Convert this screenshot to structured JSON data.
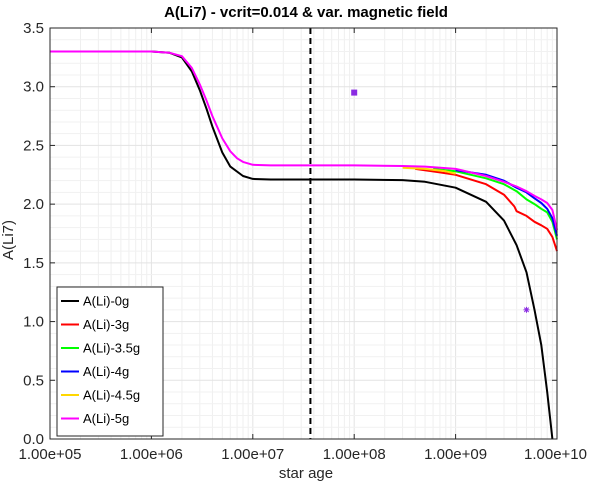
{
  "chart_data": {
    "type": "line",
    "title": "A(Li7) - vcrit=0.014 & var. magnetic field",
    "xlabel": "star age",
    "ylabel": "A(Li7)",
    "xscale": "log",
    "xlim": [
      100000,
      10000000000
    ],
    "ylim": [
      0,
      3.5
    ],
    "xticks": [
      100000,
      1000000,
      10000000,
      100000000,
      1000000000,
      10000000000
    ],
    "xtick_labels": [
      "1.00e+05",
      "1.00e+06",
      "1.00e+07",
      "1.00e+08",
      "1.00e+09",
      "1.00e+10"
    ],
    "yticks": [
      0,
      0.5,
      1,
      1.5,
      2,
      2.5,
      3,
      3.5
    ],
    "ytick_labels": [
      "0.0",
      "0.5",
      "1.0",
      "1.5",
      "2.0",
      "2.5",
      "3.0",
      "3.5"
    ],
    "grid": true,
    "legend_position": "bottom-left",
    "vertical_line": {
      "x": 37000000,
      "style": "dashed",
      "color": "#000000"
    },
    "markers": [
      {
        "x": 100000000,
        "y": 2.95,
        "shape": "square",
        "color": "#8a2be2"
      },
      {
        "x": 5000000000,
        "y": 1.1,
        "shape": "star",
        "color": "#8a2be2"
      }
    ],
    "series": [
      {
        "name": "A(Li)-0g",
        "color": "#000000",
        "x": [
          100000,
          1000000,
          1500000,
          2000000,
          2500000,
          3000000,
          3500000,
          4000000,
          5000000,
          6000000,
          8000000,
          10000000,
          15000000,
          20000000,
          50000000,
          100000000,
          300000000,
          500000000,
          1000000000,
          2000000000,
          3000000000,
          4000000000,
          5000000000,
          6000000000,
          7000000000,
          8000000000,
          9000000000
        ],
        "y": [
          3.3,
          3.3,
          3.29,
          3.25,
          3.13,
          2.97,
          2.81,
          2.66,
          2.44,
          2.32,
          2.24,
          2.215,
          2.21,
          2.21,
          2.21,
          2.21,
          2.205,
          2.19,
          2.14,
          2.02,
          1.86,
          1.65,
          1.42,
          1.1,
          0.8,
          0.4,
          0.0
        ]
      },
      {
        "name": "A(Li)-3g",
        "color": "#ff0000",
        "x": [
          400000000,
          700000000,
          1000000000,
          2000000000,
          3000000000,
          3800000000,
          4000000000,
          5000000000,
          6000000000,
          7000000000,
          8000000000,
          9000000000,
          10000000000
        ],
        "y": [
          2.3,
          2.27,
          2.25,
          2.17,
          2.08,
          1.98,
          1.94,
          1.9,
          1.85,
          1.82,
          1.79,
          1.72,
          1.6
        ]
      },
      {
        "name": "A(Li)-3.5g",
        "color": "#00ff00",
        "x": [
          600000000,
          1000000000,
          2000000000,
          3000000000,
          4000000000,
          5000000000,
          6000000000,
          7000000000,
          8000000000,
          9000000000,
          10000000000
        ],
        "y": [
          2.3,
          2.28,
          2.22,
          2.17,
          2.11,
          2.04,
          2.0,
          1.96,
          1.93,
          1.85,
          1.7
        ]
      },
      {
        "name": "A(Li)-4g",
        "color": "#0000ff",
        "x": [
          1000000000,
          2000000000,
          3000000000,
          4000000000,
          5000000000,
          6000000000,
          7000000000,
          8000000000,
          9000000000,
          10000000000
        ],
        "y": [
          2.29,
          2.25,
          2.2,
          2.14,
          2.1,
          2.05,
          2.01,
          1.96,
          1.88,
          1.73
        ]
      },
      {
        "name": "A(Li)-4.5g",
        "color": "#ffd700",
        "x": [
          300000000,
          500000000,
          800000000,
          1000000000
        ],
        "y": [
          2.31,
          2.3,
          2.28,
          2.26
        ]
      },
      {
        "name": "A(Li)-5g",
        "color": "#ff00ff",
        "x": [
          100000,
          1000000,
          1500000,
          2000000,
          2500000,
          3000000,
          3500000,
          4000000,
          5000000,
          6000000,
          7000000,
          8000000,
          10000000,
          15000000,
          20000000,
          50000000,
          100000000,
          300000000,
          500000000,
          1000000000,
          2000000000,
          3000000000,
          4000000000,
          5000000000,
          6000000000,
          7000000000,
          8000000000,
          9000000000,
          10000000000
        ],
        "y": [
          3.3,
          3.3,
          3.29,
          3.26,
          3.16,
          3.02,
          2.88,
          2.75,
          2.56,
          2.45,
          2.39,
          2.36,
          2.335,
          2.33,
          2.33,
          2.33,
          2.33,
          2.325,
          2.32,
          2.3,
          2.24,
          2.19,
          2.15,
          2.11,
          2.07,
          2.04,
          2.01,
          1.95,
          1.78
        ]
      }
    ]
  }
}
